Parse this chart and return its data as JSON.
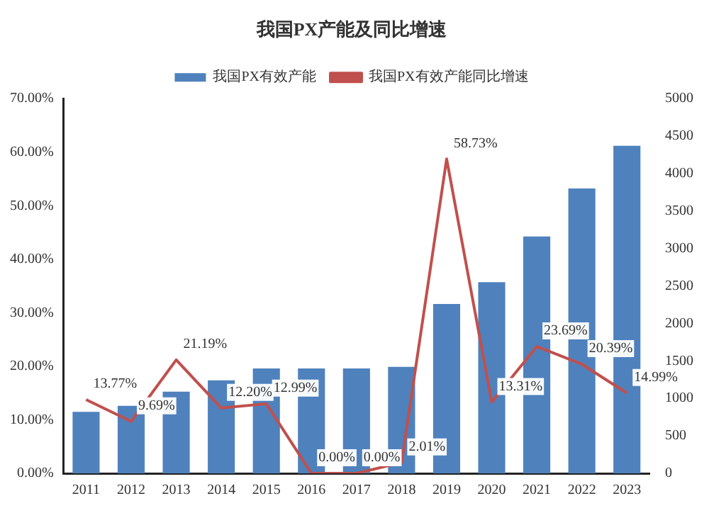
{
  "chart_data": {
    "type": "bar",
    "title": "我国PX产能及同比增速",
    "categories": [
      "2011",
      "2012",
      "2013",
      "2014",
      "2015",
      "2016",
      "2017",
      "2018",
      "2019",
      "2020",
      "2021",
      "2022",
      "2023"
    ],
    "series": [
      {
        "name": "我国PX有效产能",
        "axis": "y2",
        "color": "#4f81bd",
        "values": [
          820,
          900,
          1090,
          1240,
          1400,
          1400,
          1400,
          1420,
          2260,
          2550,
          3160,
          3800,
          4370
        ]
      },
      {
        "name": "我国PX有效产能同比增速",
        "type": "line",
        "color": "#c0504d",
        "values": [
          13.77,
          9.69,
          21.19,
          12.2,
          12.99,
          0,
          0,
          2.01,
          58.73,
          13.31,
          23.69,
          20.39,
          14.99
        ],
        "value_labels": [
          "13.77%",
          "9.69%",
          "21.19%",
          "12.20%",
          "12.99%",
          "0.00%",
          "0.00%",
          "2.01%",
          "58.73%",
          "13.31%",
          "23.69%",
          "20.39%",
          "14.99%"
        ]
      }
    ],
    "ylim": [
      0,
      70
    ],
    "yticks": [
      {
        "value": 0,
        "label": "0.00%"
      },
      {
        "value": 10,
        "label": "10.00%"
      },
      {
        "value": 20,
        "label": "20.00%"
      },
      {
        "value": 30,
        "label": "30.00%"
      },
      {
        "value": 40,
        "label": "40.00%"
      },
      {
        "value": 50,
        "label": "50.00%"
      },
      {
        "value": 60,
        "label": "60.00%"
      },
      {
        "value": 70,
        "label": "70.00%"
      }
    ],
    "y2lim": [
      0,
      5000
    ],
    "y2ticks": [
      0,
      500,
      1000,
      1500,
      2000,
      2500,
      3000,
      3500,
      4000,
      4500,
      5000
    ],
    "legend": "top",
    "grid": false,
    "marker": "none"
  }
}
